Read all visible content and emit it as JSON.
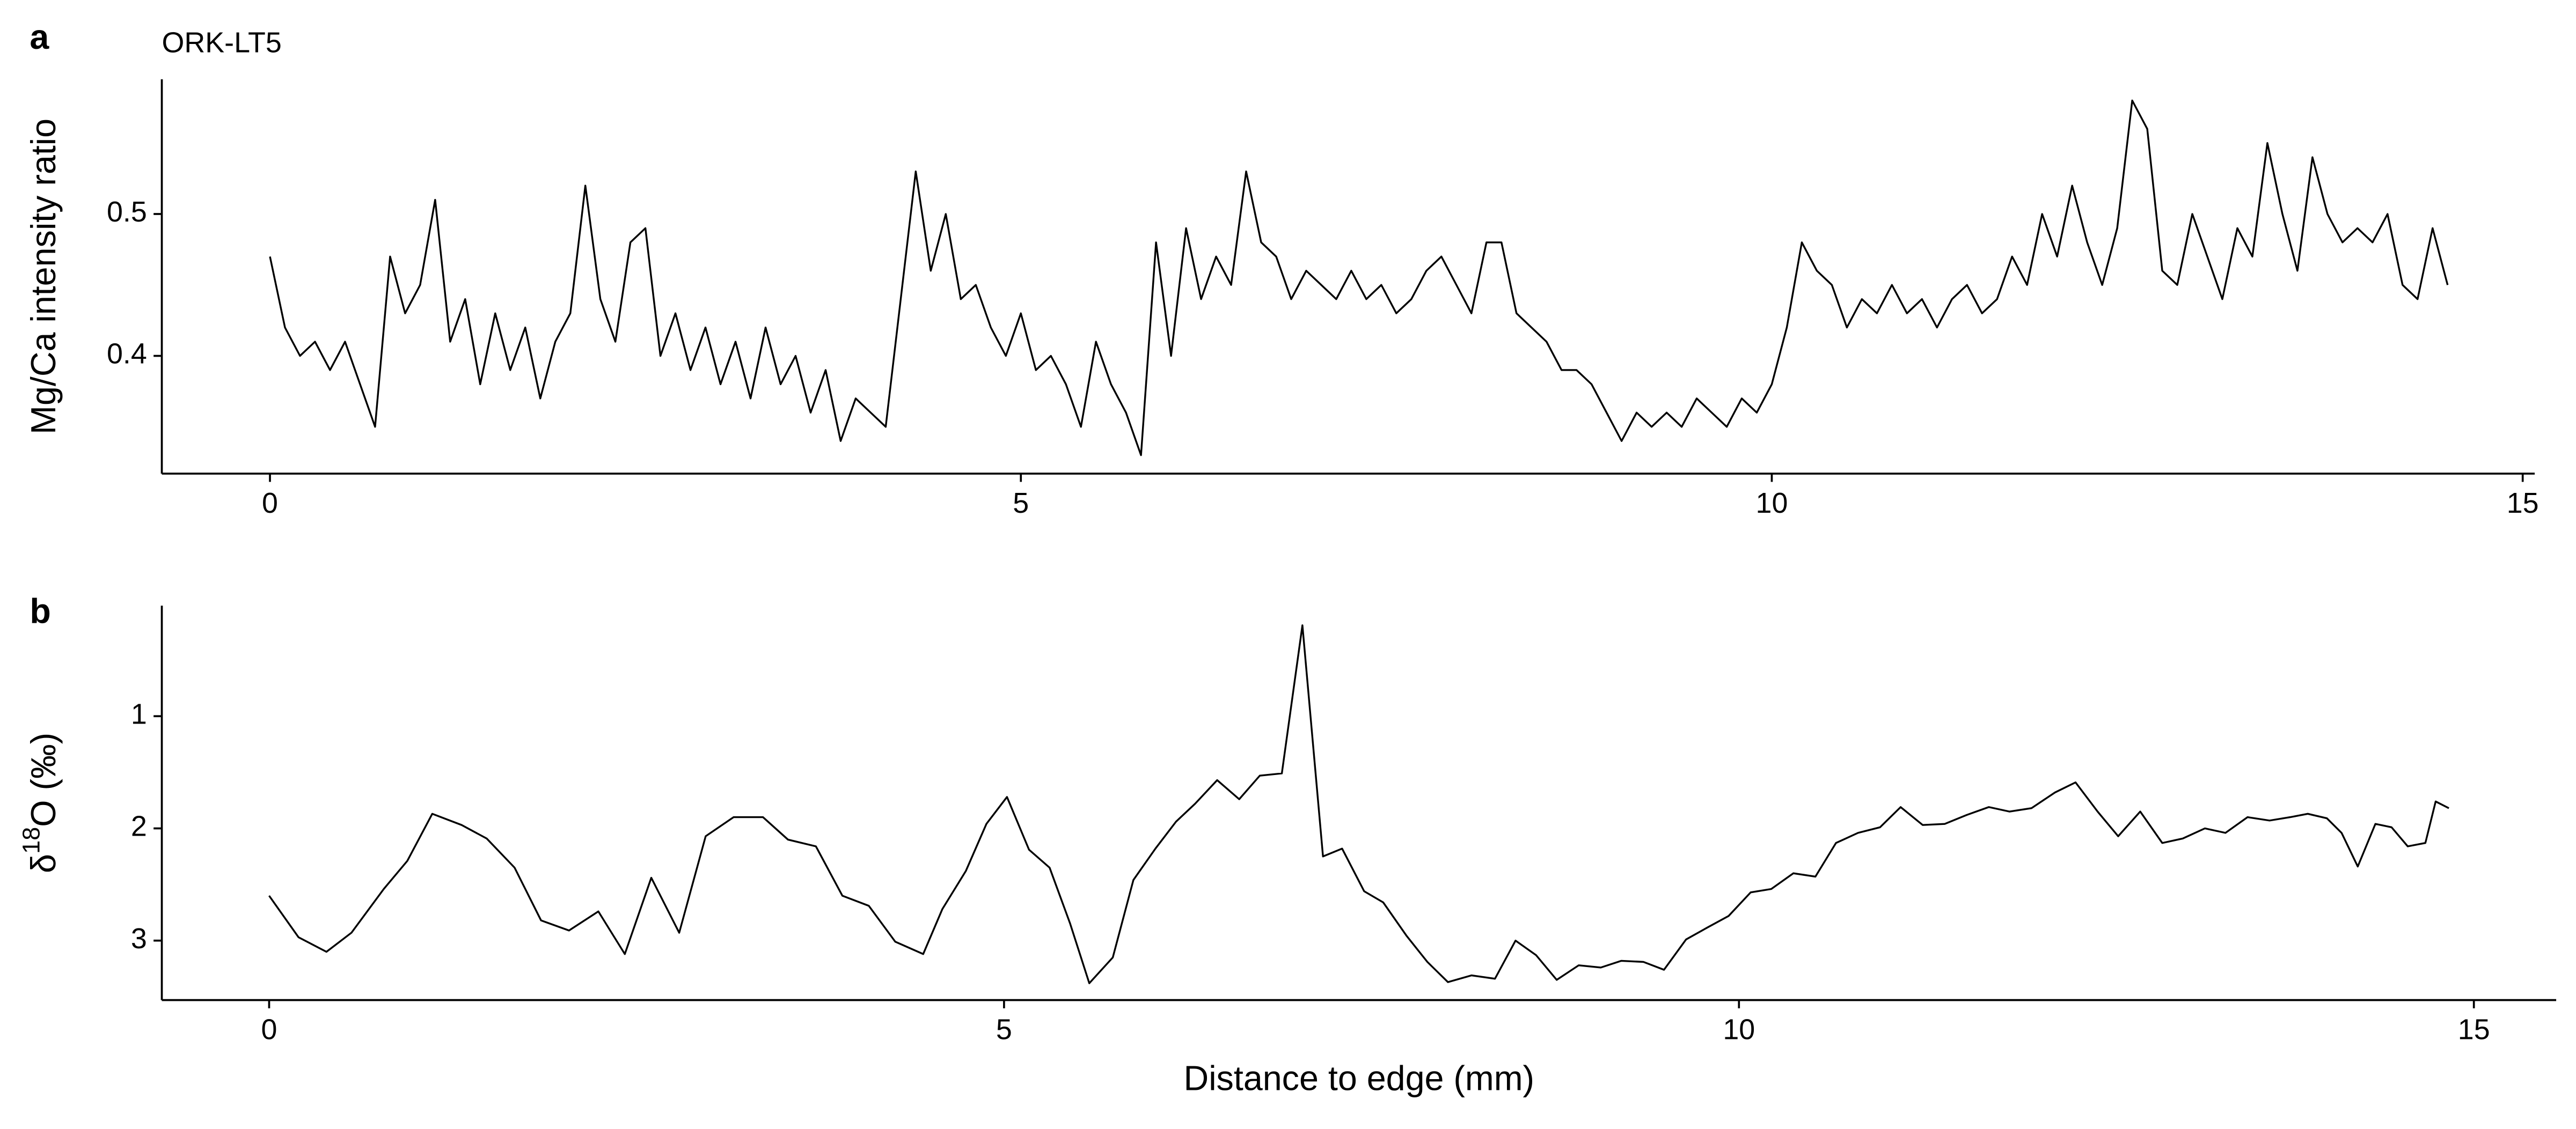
{
  "chart_data": [
    {
      "type": "line",
      "panel": "a",
      "subtitle": "ORK-LT5",
      "y_label": "Mg/Ca intensity ratio",
      "color": "#000000",
      "x": [
        0,
        0.1,
        0.2,
        0.3,
        0.4,
        0.5,
        0.6,
        0.7,
        0.8,
        0.9,
        1,
        1.1,
        1.2,
        1.3,
        1.4,
        1.5,
        1.6,
        1.7,
        1.8,
        1.9,
        2,
        2.1,
        2.2,
        2.3,
        2.4,
        2.5,
        2.6,
        2.7,
        2.8,
        2.9,
        3,
        3.1,
        3.2,
        3.3,
        3.4,
        3.5,
        3.6,
        3.7,
        3.8,
        3.9,
        4,
        4.1,
        4.2,
        4.3,
        4.4,
        4.5,
        4.6,
        4.7,
        4.8,
        4.9,
        5,
        5.1,
        5.2,
        5.3,
        5.4,
        5.5,
        5.6,
        5.7,
        5.8,
        5.9,
        6,
        6.1,
        6.2,
        6.3,
        6.4,
        6.5,
        6.6,
        6.7,
        6.8,
        6.9,
        7,
        7.1,
        7.2,
        7.3,
        7.4,
        7.5,
        7.6,
        7.7,
        7.8,
        7.9,
        8,
        8.1,
        8.2,
        8.3,
        8.4,
        8.5,
        8.6,
        8.7,
        8.8,
        8.9,
        9,
        9.1,
        9.2,
        9.3,
        9.4,
        9.5,
        9.6,
        9.7,
        9.8,
        9.9,
        10,
        10.1,
        10.2,
        10.3,
        10.4,
        10.5,
        10.6,
        10.7,
        10.8,
        10.9,
        11,
        11.1,
        11.2,
        11.3,
        11.4,
        11.5,
        11.6,
        11.7,
        11.8,
        11.9,
        12,
        12.1,
        12.2,
        12.3,
        12.4,
        12.5,
        12.6,
        12.7,
        12.8,
        12.9,
        13,
        13.1,
        13.2,
        13.3,
        13.4,
        13.5,
        13.6,
        13.7,
        13.8,
        13.9,
        14,
        14.1,
        14.2,
        14.3,
        14.4,
        14.5
      ],
      "values": [
        0.47,
        0.42,
        0.4,
        0.41,
        0.39,
        0.41,
        0.38,
        0.35,
        0.47,
        0.43,
        0.45,
        0.51,
        0.41,
        0.44,
        0.38,
        0.43,
        0.39,
        0.42,
        0.37,
        0.41,
        0.43,
        0.52,
        0.44,
        0.41,
        0.48,
        0.49,
        0.4,
        0.43,
        0.39,
        0.42,
        0.38,
        0.41,
        0.37,
        0.42,
        0.38,
        0.4,
        0.36,
        0.39,
        0.34,
        0.37,
        0.36,
        0.35,
        0.44,
        0.53,
        0.46,
        0.5,
        0.44,
        0.45,
        0.42,
        0.4,
        0.43,
        0.39,
        0.4,
        0.38,
        0.35,
        0.41,
        0.38,
        0.36,
        0.33,
        0.48,
        0.4,
        0.49,
        0.44,
        0.47,
        0.45,
        0.53,
        0.48,
        0.47,
        0.44,
        0.46,
        0.45,
        0.44,
        0.46,
        0.44,
        0.45,
        0.43,
        0.44,
        0.46,
        0.47,
        0.45,
        0.43,
        0.48,
        0.48,
        0.43,
        0.42,
        0.41,
        0.39,
        0.39,
        0.38,
        0.36,
        0.34,
        0.36,
        0.35,
        0.36,
        0.35,
        0.37,
        0.36,
        0.35,
        0.37,
        0.36,
        0.38,
        0.42,
        0.48,
        0.46,
        0.45,
        0.42,
        0.44,
        0.43,
        0.45,
        0.43,
        0.44,
        0.42,
        0.44,
        0.45,
        0.43,
        0.44,
        0.47,
        0.45,
        0.5,
        0.47,
        0.52,
        0.48,
        0.45,
        0.49,
        0.58,
        0.56,
        0.46,
        0.45,
        0.5,
        0.47,
        0.44,
        0.49,
        0.47,
        0.55,
        0.5,
        0.46,
        0.54,
        0.5,
        0.48,
        0.49,
        0.48,
        0.5,
        0.45,
        0.44,
        0.49,
        0.45
      ],
      "xlim": [
        -0.72,
        15.08
      ],
      "ylim": [
        0.317,
        0.595
      ],
      "xticks": [
        0,
        5,
        10,
        15
      ],
      "yticks": [
        0.4,
        0.5
      ]
    },
    {
      "type": "line",
      "panel": "b",
      "y_label": [
        "δ",
        "18",
        "O (‰)"
      ],
      "x_label": "Distance to edge (mm)",
      "color": "#000000",
      "x": [
        0,
        0.2,
        0.39,
        0.56,
        0.78,
        0.94,
        1.11,
        1.31,
        1.48,
        1.67,
        1.85,
        2.04,
        2.24,
        2.42,
        2.6,
        2.79,
        2.97,
        3.16,
        3.36,
        3.53,
        3.72,
        3.9,
        4.08,
        4.26,
        4.45,
        4.58,
        4.74,
        4.88,
        5.02,
        5.17,
        5.31,
        5.45,
        5.58,
        5.74,
        5.88,
        6.03,
        6.17,
        6.3,
        6.45,
        6.6,
        6.74,
        6.89,
        7.03,
        7.17,
        7.3,
        7.45,
        7.58,
        7.74,
        7.88,
        8.02,
        8.18,
        8.34,
        8.48,
        8.62,
        8.76,
        8.91,
        9.06,
        9.2,
        9.35,
        9.49,
        9.64,
        9.79,
        9.93,
        10.08,
        10.22,
        10.37,
        10.52,
        10.66,
        10.81,
        10.96,
        11.1,
        11.25,
        11.4,
        11.55,
        11.7,
        11.84,
        11.99,
        12.15,
        12.29,
        12.44,
        12.58,
        12.73,
        12.88,
        13.02,
        13.17,
        13.31,
        13.46,
        13.61,
        13.75,
        13.87,
        14,
        14.1,
        14.21,
        14.33,
        14.44,
        14.55,
        14.67,
        14.74,
        14.83
      ],
      "values": [
        2.6,
        2.97,
        3.1,
        2.93,
        2.54,
        2.29,
        1.87,
        1.97,
        2.09,
        2.35,
        2.82,
        2.91,
        2.74,
        3.12,
        2.44,
        2.93,
        2.07,
        1.9,
        1.9,
        2.1,
        2.16,
        2.6,
        2.69,
        3.01,
        3.12,
        2.72,
        2.38,
        1.96,
        1.72,
        2.19,
        2.35,
        2.85,
        3.38,
        3.15,
        2.46,
        2.18,
        1.94,
        1.78,
        1.57,
        1.74,
        1.53,
        1.51,
        0.19,
        2.25,
        2.18,
        2.56,
        2.66,
        2.96,
        3.19,
        3.37,
        3.31,
        3.34,
        3.0,
        3.13,
        3.35,
        3.22,
        3.24,
        3.18,
        3.19,
        3.26,
        2.99,
        2.88,
        2.78,
        2.57,
        2.54,
        2.4,
        2.43,
        2.13,
        2.04,
        1.99,
        1.81,
        1.97,
        1.96,
        1.88,
        1.81,
        1.85,
        1.82,
        1.68,
        1.59,
        1.85,
        2.07,
        1.85,
        2.13,
        2.09,
        2.0,
        2.04,
        1.9,
        1.93,
        1.9,
        1.87,
        1.91,
        2.04,
        2.34,
        1.96,
        1.99,
        2.16,
        2.13,
        1.76,
        1.82
      ],
      "xlim": [
        -0.73,
        15.56
      ],
      "ylim": [
        3.53,
        0.015
      ],
      "xticks": [
        0,
        5,
        10,
        15
      ],
      "yticks": [
        1,
        2,
        3
      ]
    }
  ]
}
